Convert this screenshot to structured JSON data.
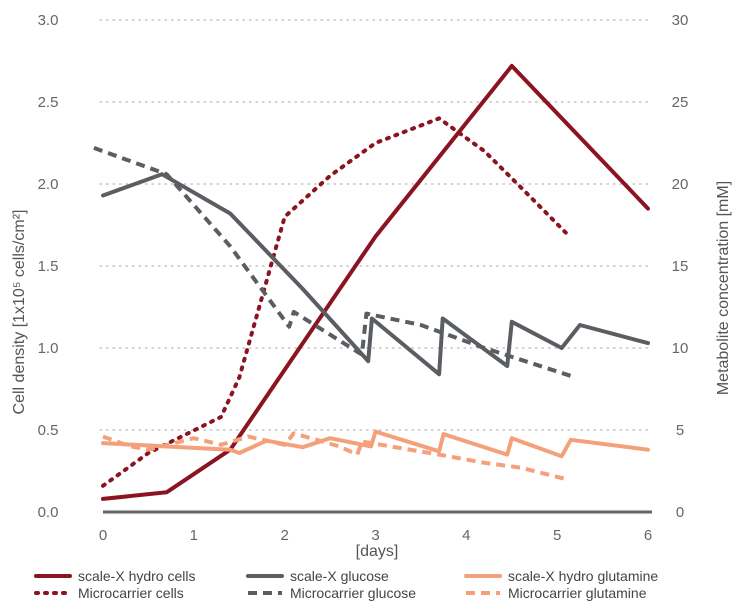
{
  "chart_data": {
    "type": "line",
    "xlabel": "[days]",
    "ylabel_left": "Cell density [1x10⁵ cells/cm²]",
    "ylabel_right": "Metabolite concentration [mM]",
    "xlim": [
      0,
      6
    ],
    "ylim_left": [
      0,
      3.0
    ],
    "ylim_right": [
      0,
      30
    ],
    "x_ticks": [
      "0",
      "1",
      "2",
      "3",
      "4",
      "5",
      "6"
    ],
    "y_left_ticks": [
      "0.0",
      "0.5",
      "1.0",
      "1.5",
      "2.0",
      "2.5",
      "3.0"
    ],
    "y_right_ticks": [
      "0",
      "5",
      "10",
      "15",
      "20",
      "25",
      "30"
    ],
    "grid": "horizontal dotted",
    "legend_position": "bottom",
    "series": [
      {
        "name": "scale-X hydro cells",
        "axis": "left",
        "color": "#8B1420",
        "dash": "solid",
        "x": [
          0,
          0.7,
          1.4,
          3.0,
          4.5,
          6.0
        ],
        "y": [
          0.08,
          0.12,
          0.38,
          1.68,
          2.72,
          1.85
        ]
      },
      {
        "name": "Microcarrier cells",
        "axis": "left",
        "color": "#8B1420",
        "dash": "dotted",
        "x": [
          0,
          0.5,
          1.3,
          1.5,
          2.0,
          2.5,
          3.0,
          3.7,
          4.2,
          4.6,
          5.1
        ],
        "y": [
          0.16,
          0.36,
          0.58,
          0.82,
          1.8,
          2.05,
          2.25,
          2.4,
          2.2,
          1.98,
          1.7
        ]
      },
      {
        "name": "scale-X glucose",
        "axis": "right",
        "color": "#5A5E63",
        "dash": "solid",
        "x": [
          0,
          0.65,
          1.4,
          2.2,
          2.92,
          2.96,
          3.7,
          3.74,
          4.45,
          4.5,
          5.05,
          5.25,
          6.0
        ],
        "y": [
          19.3,
          20.6,
          18.2,
          13.6,
          9.2,
          11.8,
          8.4,
          11.8,
          8.9,
          11.6,
          10.0,
          11.4,
          10.3
        ]
      },
      {
        "name": "Microcarrier glucose",
        "axis": "right",
        "color": "#5A5E63",
        "dash": "dashed",
        "x": [
          -0.1,
          0.7,
          1.4,
          2.05,
          2.1,
          2.85,
          2.9,
          3.5,
          4.2,
          5.15
        ],
        "y": [
          22.2,
          20.6,
          16.2,
          11.3,
          12.2,
          9.6,
          12.1,
          11.4,
          10.0,
          8.3
        ]
      },
      {
        "name": "scale-X hydro glutamine",
        "axis": "right",
        "color": "#F4A07A",
        "dash": "solid",
        "x": [
          0,
          1.4,
          1.5,
          1.8,
          2.2,
          2.5,
          2.95,
          3.0,
          3.7,
          3.75,
          4.45,
          4.5,
          5.05,
          5.15,
          6.0
        ],
        "y": [
          4.2,
          3.8,
          3.6,
          4.35,
          3.95,
          4.5,
          4.0,
          4.9,
          3.7,
          4.75,
          3.5,
          4.5,
          3.4,
          4.4,
          3.8
        ]
      },
      {
        "name": "Microcarrier glutamine",
        "axis": "right",
        "color": "#F4A07A",
        "dash": "dashed",
        "x": [
          0,
          0.3,
          0.5,
          1.0,
          1.3,
          1.6,
          2.0,
          2.1,
          2.6,
          2.8,
          2.85,
          3.7,
          4.2,
          4.6,
          5.1
        ],
        "y": [
          4.6,
          4.0,
          3.8,
          4.5,
          4.1,
          4.6,
          4.1,
          4.8,
          4.0,
          3.5,
          4.3,
          3.5,
          3.0,
          2.7,
          2.0
        ]
      }
    ]
  }
}
